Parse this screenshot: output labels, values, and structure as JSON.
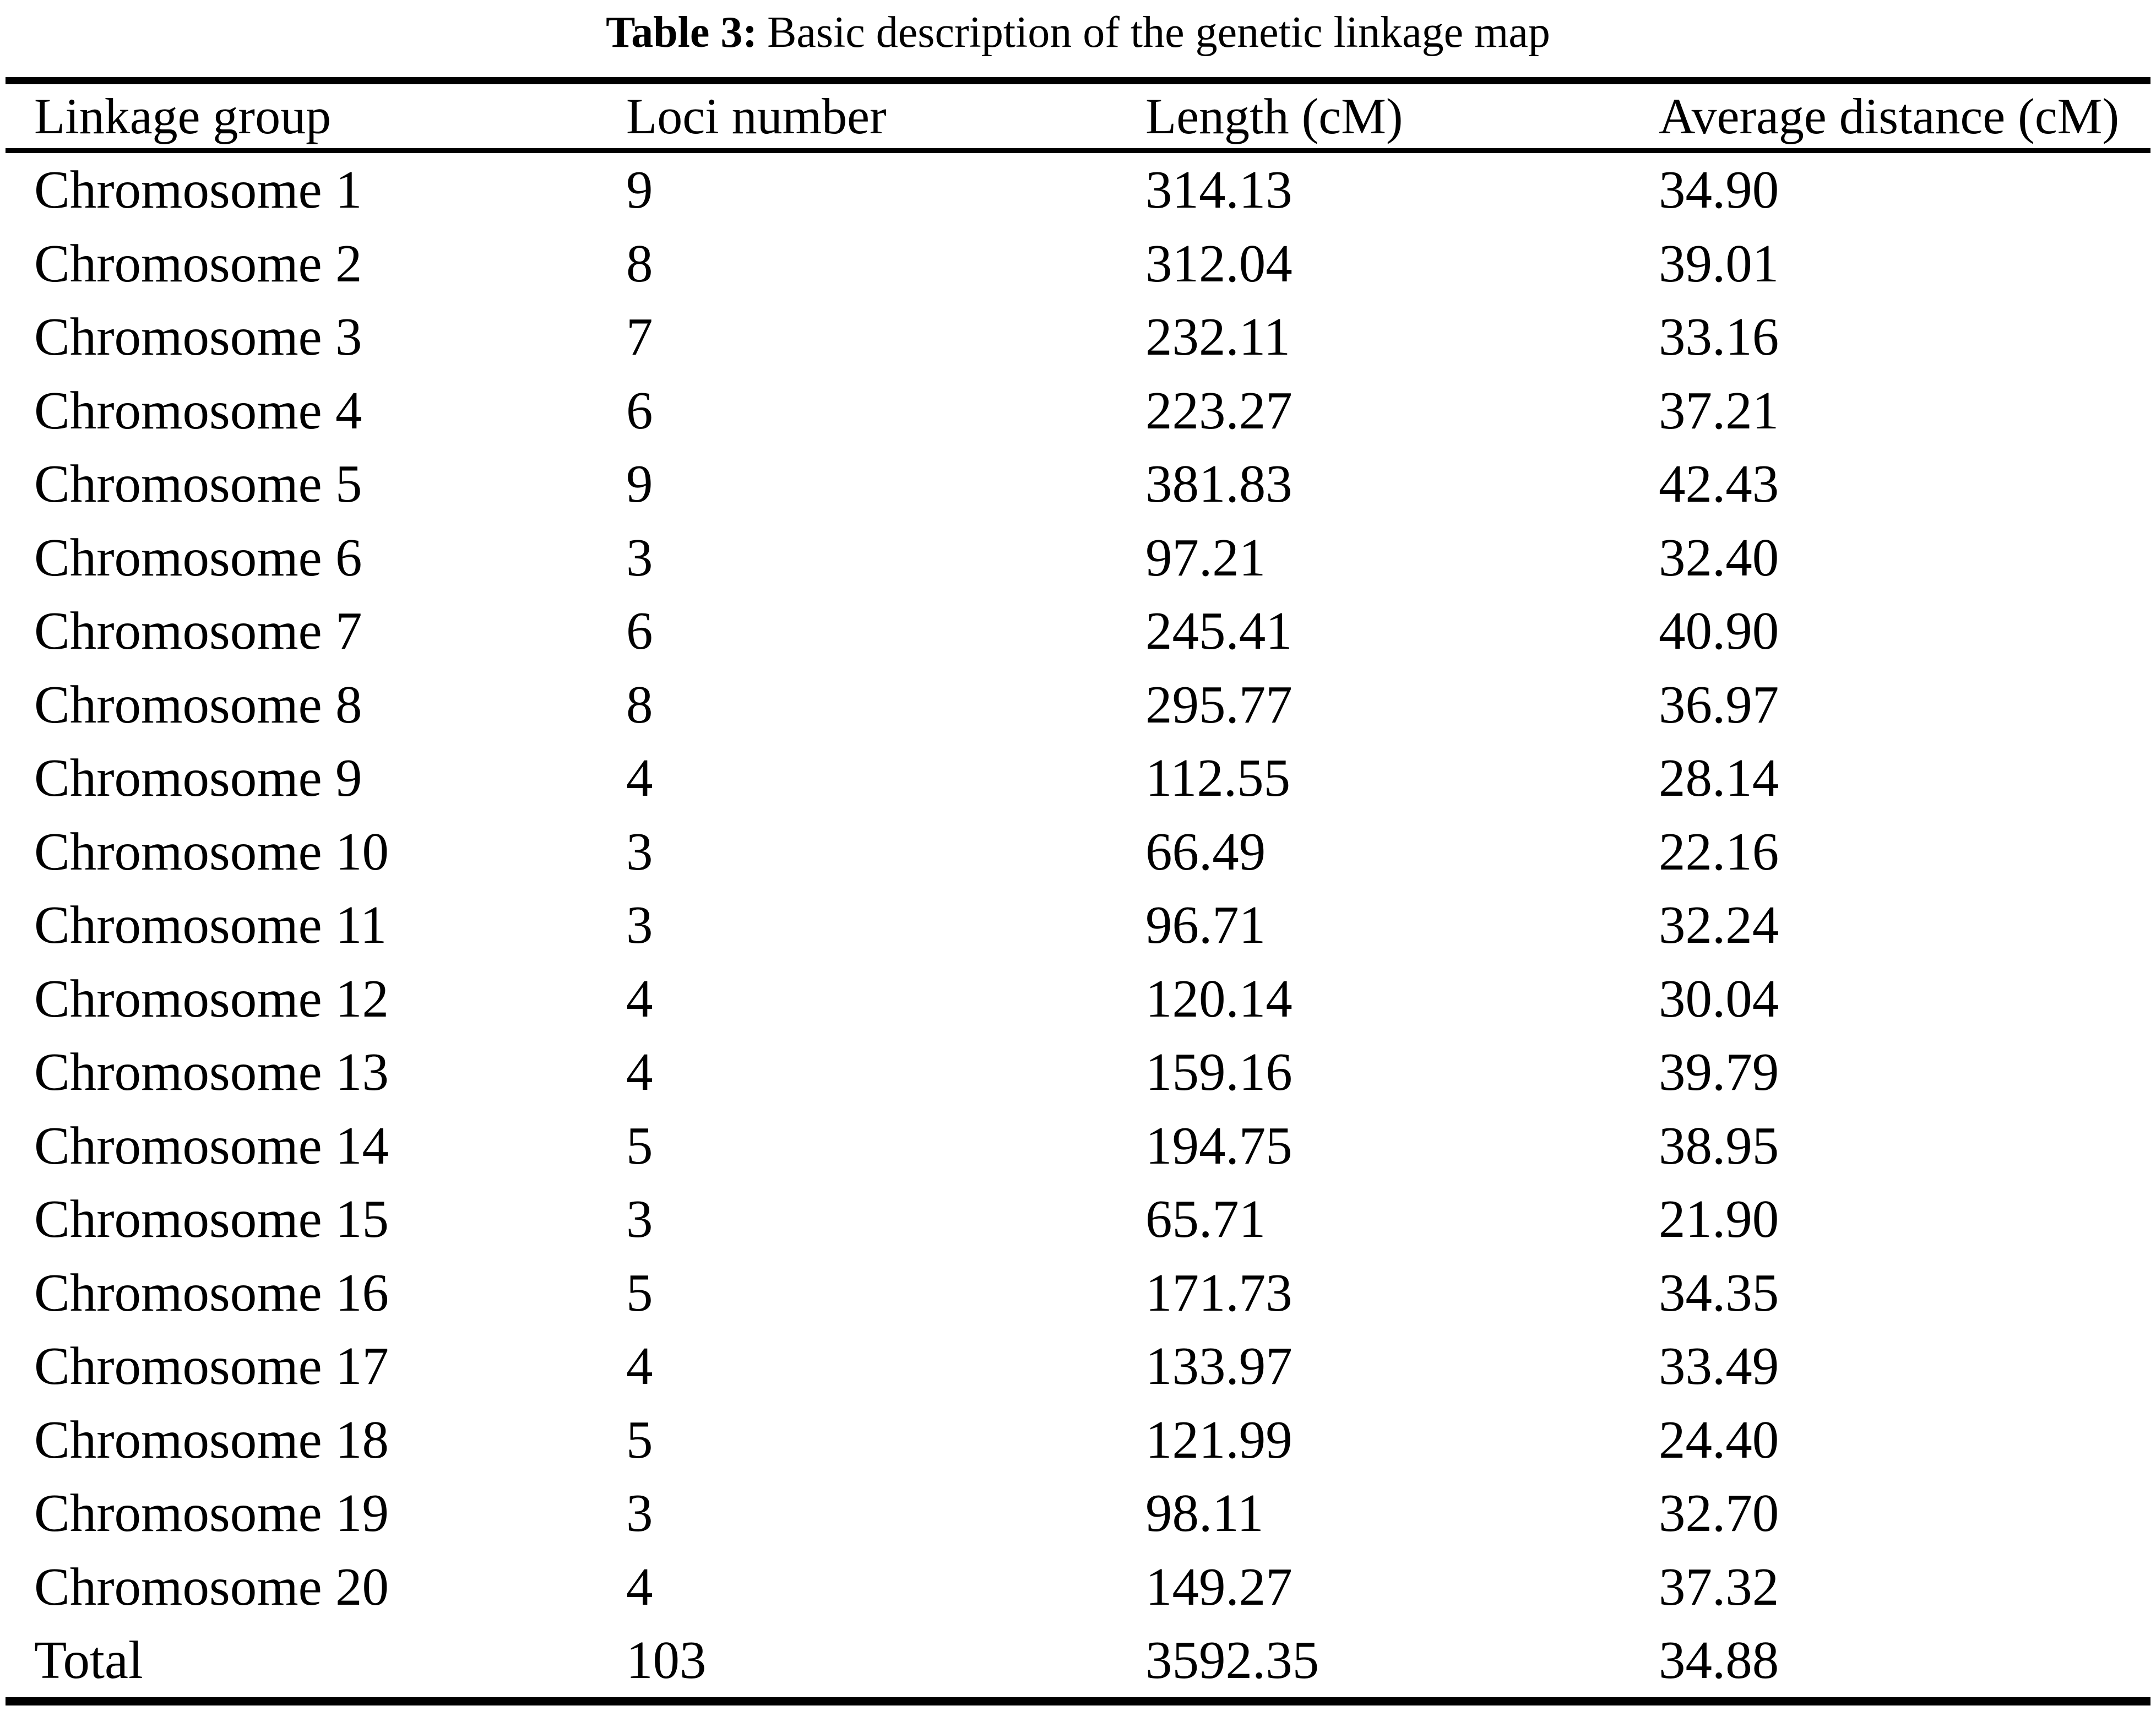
{
  "caption": {
    "label": "Table 3:",
    "text": "Basic description of the genetic linkage map"
  },
  "table": {
    "headers": [
      "Linkage group",
      "Loci number",
      "Length (cM)",
      "Average distance (cM)"
    ],
    "rows": [
      {
        "group": "Chromosome 1",
        "loci": "9",
        "length": "314.13",
        "avg": "34.90"
      },
      {
        "group": "Chromosome 2",
        "loci": "8",
        "length": "312.04",
        "avg": "39.01"
      },
      {
        "group": "Chromosome 3",
        "loci": "7",
        "length": "232.11",
        "avg": "33.16"
      },
      {
        "group": "Chromosome 4",
        "loci": "6",
        "length": "223.27",
        "avg": "37.21"
      },
      {
        "group": "Chromosome 5",
        "loci": "9",
        "length": "381.83",
        "avg": "42.43"
      },
      {
        "group": "Chromosome 6",
        "loci": "3",
        "length": "97.21",
        "avg": "32.40"
      },
      {
        "group": "Chromosome 7",
        "loci": "6",
        "length": "245.41",
        "avg": "40.90"
      },
      {
        "group": "Chromosome 8",
        "loci": "8",
        "length": "295.77",
        "avg": "36.97"
      },
      {
        "group": "Chromosome 9",
        "loci": "4",
        "length": "112.55",
        "avg": "28.14"
      },
      {
        "group": "Chromosome 10",
        "loci": "3",
        "length": "66.49",
        "avg": "22.16"
      },
      {
        "group": "Chromosome 11",
        "loci": "3",
        "length": "96.71",
        "avg": "32.24"
      },
      {
        "group": "Chromosome 12",
        "loci": "4",
        "length": "120.14",
        "avg": "30.04"
      },
      {
        "group": "Chromosome 13",
        "loci": "4",
        "length": "159.16",
        "avg": "39.79"
      },
      {
        "group": "Chromosome 14",
        "loci": "5",
        "length": "194.75",
        "avg": "38.95"
      },
      {
        "group": "Chromosome 15",
        "loci": "3",
        "length": "65.71",
        "avg": "21.90"
      },
      {
        "group": "Chromosome 16",
        "loci": "5",
        "length": "171.73",
        "avg": "34.35"
      },
      {
        "group": "Chromosome 17",
        "loci": "4",
        "length": "133.97",
        "avg": "33.49"
      },
      {
        "group": "Chromosome 18",
        "loci": "5",
        "length": "121.99",
        "avg": "24.40"
      },
      {
        "group": "Chromosome 19",
        "loci": "3",
        "length": "98.11",
        "avg": "32.70"
      },
      {
        "group": "Chromosome 20",
        "loci": "4",
        "length": "149.27",
        "avg": "37.32"
      },
      {
        "group": "Total",
        "loci": "103",
        "length": "3592.35",
        "avg": "34.88"
      }
    ]
  }
}
